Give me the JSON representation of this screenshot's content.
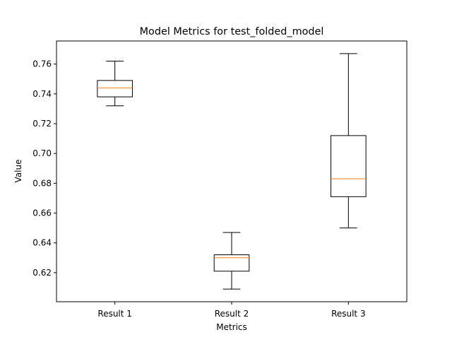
{
  "chart_data": {
    "type": "box",
    "title": "Model Metrics for test_folded_model",
    "xlabel": "Metrics",
    "ylabel": "Value",
    "categories": [
      "Result 1",
      "Result 2",
      "Result 3"
    ],
    "ylim": [
      0.6005,
      0.7755
    ],
    "yticks": [
      0.62,
      0.64,
      0.66,
      0.68,
      0.7,
      0.72,
      0.74,
      0.76
    ],
    "ytick_labels": [
      "0.62",
      "0.64",
      "0.66",
      "0.68",
      "0.70",
      "0.72",
      "0.74",
      "0.76"
    ],
    "boxes": [
      {
        "category": "Result 1",
        "whisker_low": 0.732,
        "q1": 0.738,
        "median": 0.744,
        "q3": 0.749,
        "whisker_high": 0.762
      },
      {
        "category": "Result 2",
        "whisker_low": 0.609,
        "q1": 0.621,
        "median": 0.63,
        "q3": 0.632,
        "whisker_high": 0.647
      },
      {
        "category": "Result 3",
        "whisker_low": 0.65,
        "q1": 0.671,
        "median": 0.683,
        "q3": 0.712,
        "whisker_high": 0.767
      }
    ],
    "grid": false,
    "colors": {
      "box": "#000000",
      "median": "#ff7f0e"
    }
  }
}
